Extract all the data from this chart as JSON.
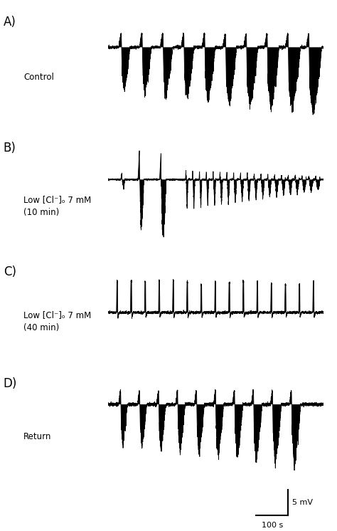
{
  "fig_width": 4.74,
  "fig_height": 7.46,
  "background_color": "#ffffff",
  "panel_labels": [
    "A)",
    "B)",
    "C)",
    "D)"
  ],
  "panel_texts": [
    "Control",
    "Low [Cl⁻]ₒ 7 mM\n(10 min)",
    "Low [Cl⁻]ₒ 7 mM\n(40 min)",
    "Return"
  ],
  "scale_bar_label_x": "100 s",
  "scale_bar_label_y": "5 mV"
}
